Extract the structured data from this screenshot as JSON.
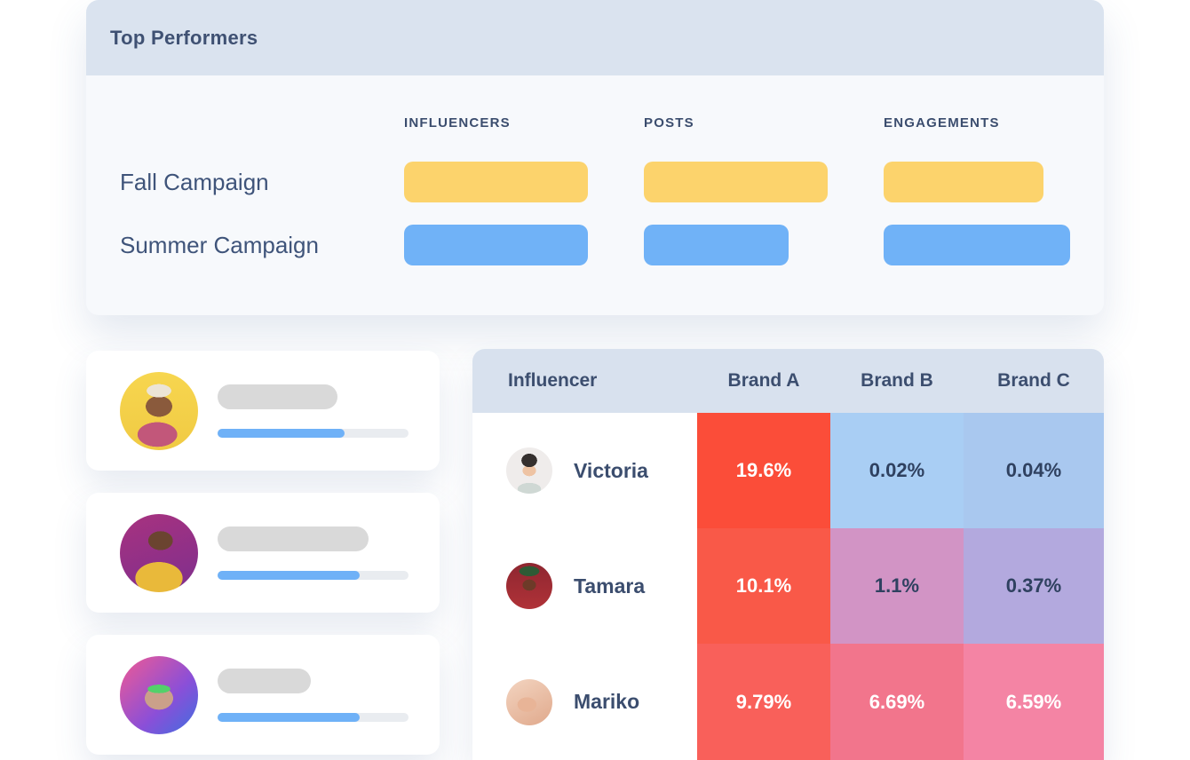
{
  "top_performers": {
    "title": "Top Performers",
    "columns": [
      "Influencers",
      "Posts",
      "Engagements"
    ],
    "rows": [
      {
        "label": "Fall Campaign",
        "bar_color": "#fcd36c",
        "bars": [
          207,
          207,
          180
        ]
      },
      {
        "label": "Summer Campaign",
        "bar_color": "#70b2f7",
        "bars": [
          207,
          163,
          210
        ]
      }
    ]
  },
  "influencer_cards": [
    {
      "avatar": "woman-yellow-cap-photo",
      "title_bar_width": 135,
      "track_width": 215,
      "progress_width": 143,
      "progress_color": "#6fb1f7",
      "track_color": "#e9ecf0"
    },
    {
      "avatar": "person-yellow-jacket-photo",
      "title_bar_width": 170,
      "track_width": 215,
      "progress_width": 160,
      "progress_color": "#6fb1f7",
      "track_color": "#e9ecf0"
    },
    {
      "avatar": "woman-green-glasses-photo",
      "title_bar_width": 105,
      "track_width": 215,
      "progress_width": 160,
      "progress_color": "#6fb1f7",
      "track_color": "#e9ecf0"
    }
  ],
  "heatmap": {
    "columns": [
      "Influencer",
      "Brand A",
      "Brand B",
      "Brand C"
    ],
    "rows": [
      {
        "name": "Victoria",
        "avatar": "victoria-photo",
        "cells": [
          {
            "value": "19.6%",
            "bg": "#fb4d39",
            "text": "#ffffff"
          },
          {
            "value": "0.02%",
            "bg": "#a9cef4",
            "text": "#2f4160"
          },
          {
            "value": "0.04%",
            "bg": "#a9c8ef",
            "text": "#2f4160"
          }
        ]
      },
      {
        "name": "Tamara",
        "avatar": "tamara-photo",
        "cells": [
          {
            "value": "10.1%",
            "bg": "#f95948",
            "text": "#ffffff"
          },
          {
            "value": "1.1%",
            "bg": "#d294c5",
            "text": "#2f4160"
          },
          {
            "value": "0.37%",
            "bg": "#b3a9de",
            "text": "#2f4160"
          }
        ]
      },
      {
        "name": "Mariko",
        "avatar": "mariko-photo",
        "cells": [
          {
            "value": "9.79%",
            "bg": "#f9605a",
            "text": "#ffffff"
          },
          {
            "value": "6.69%",
            "bg": "#f2758c",
            "text": "#ffffff"
          },
          {
            "value": "6.59%",
            "bg": "#f484a4",
            "text": "#ffffff"
          }
        ]
      }
    ]
  }
}
